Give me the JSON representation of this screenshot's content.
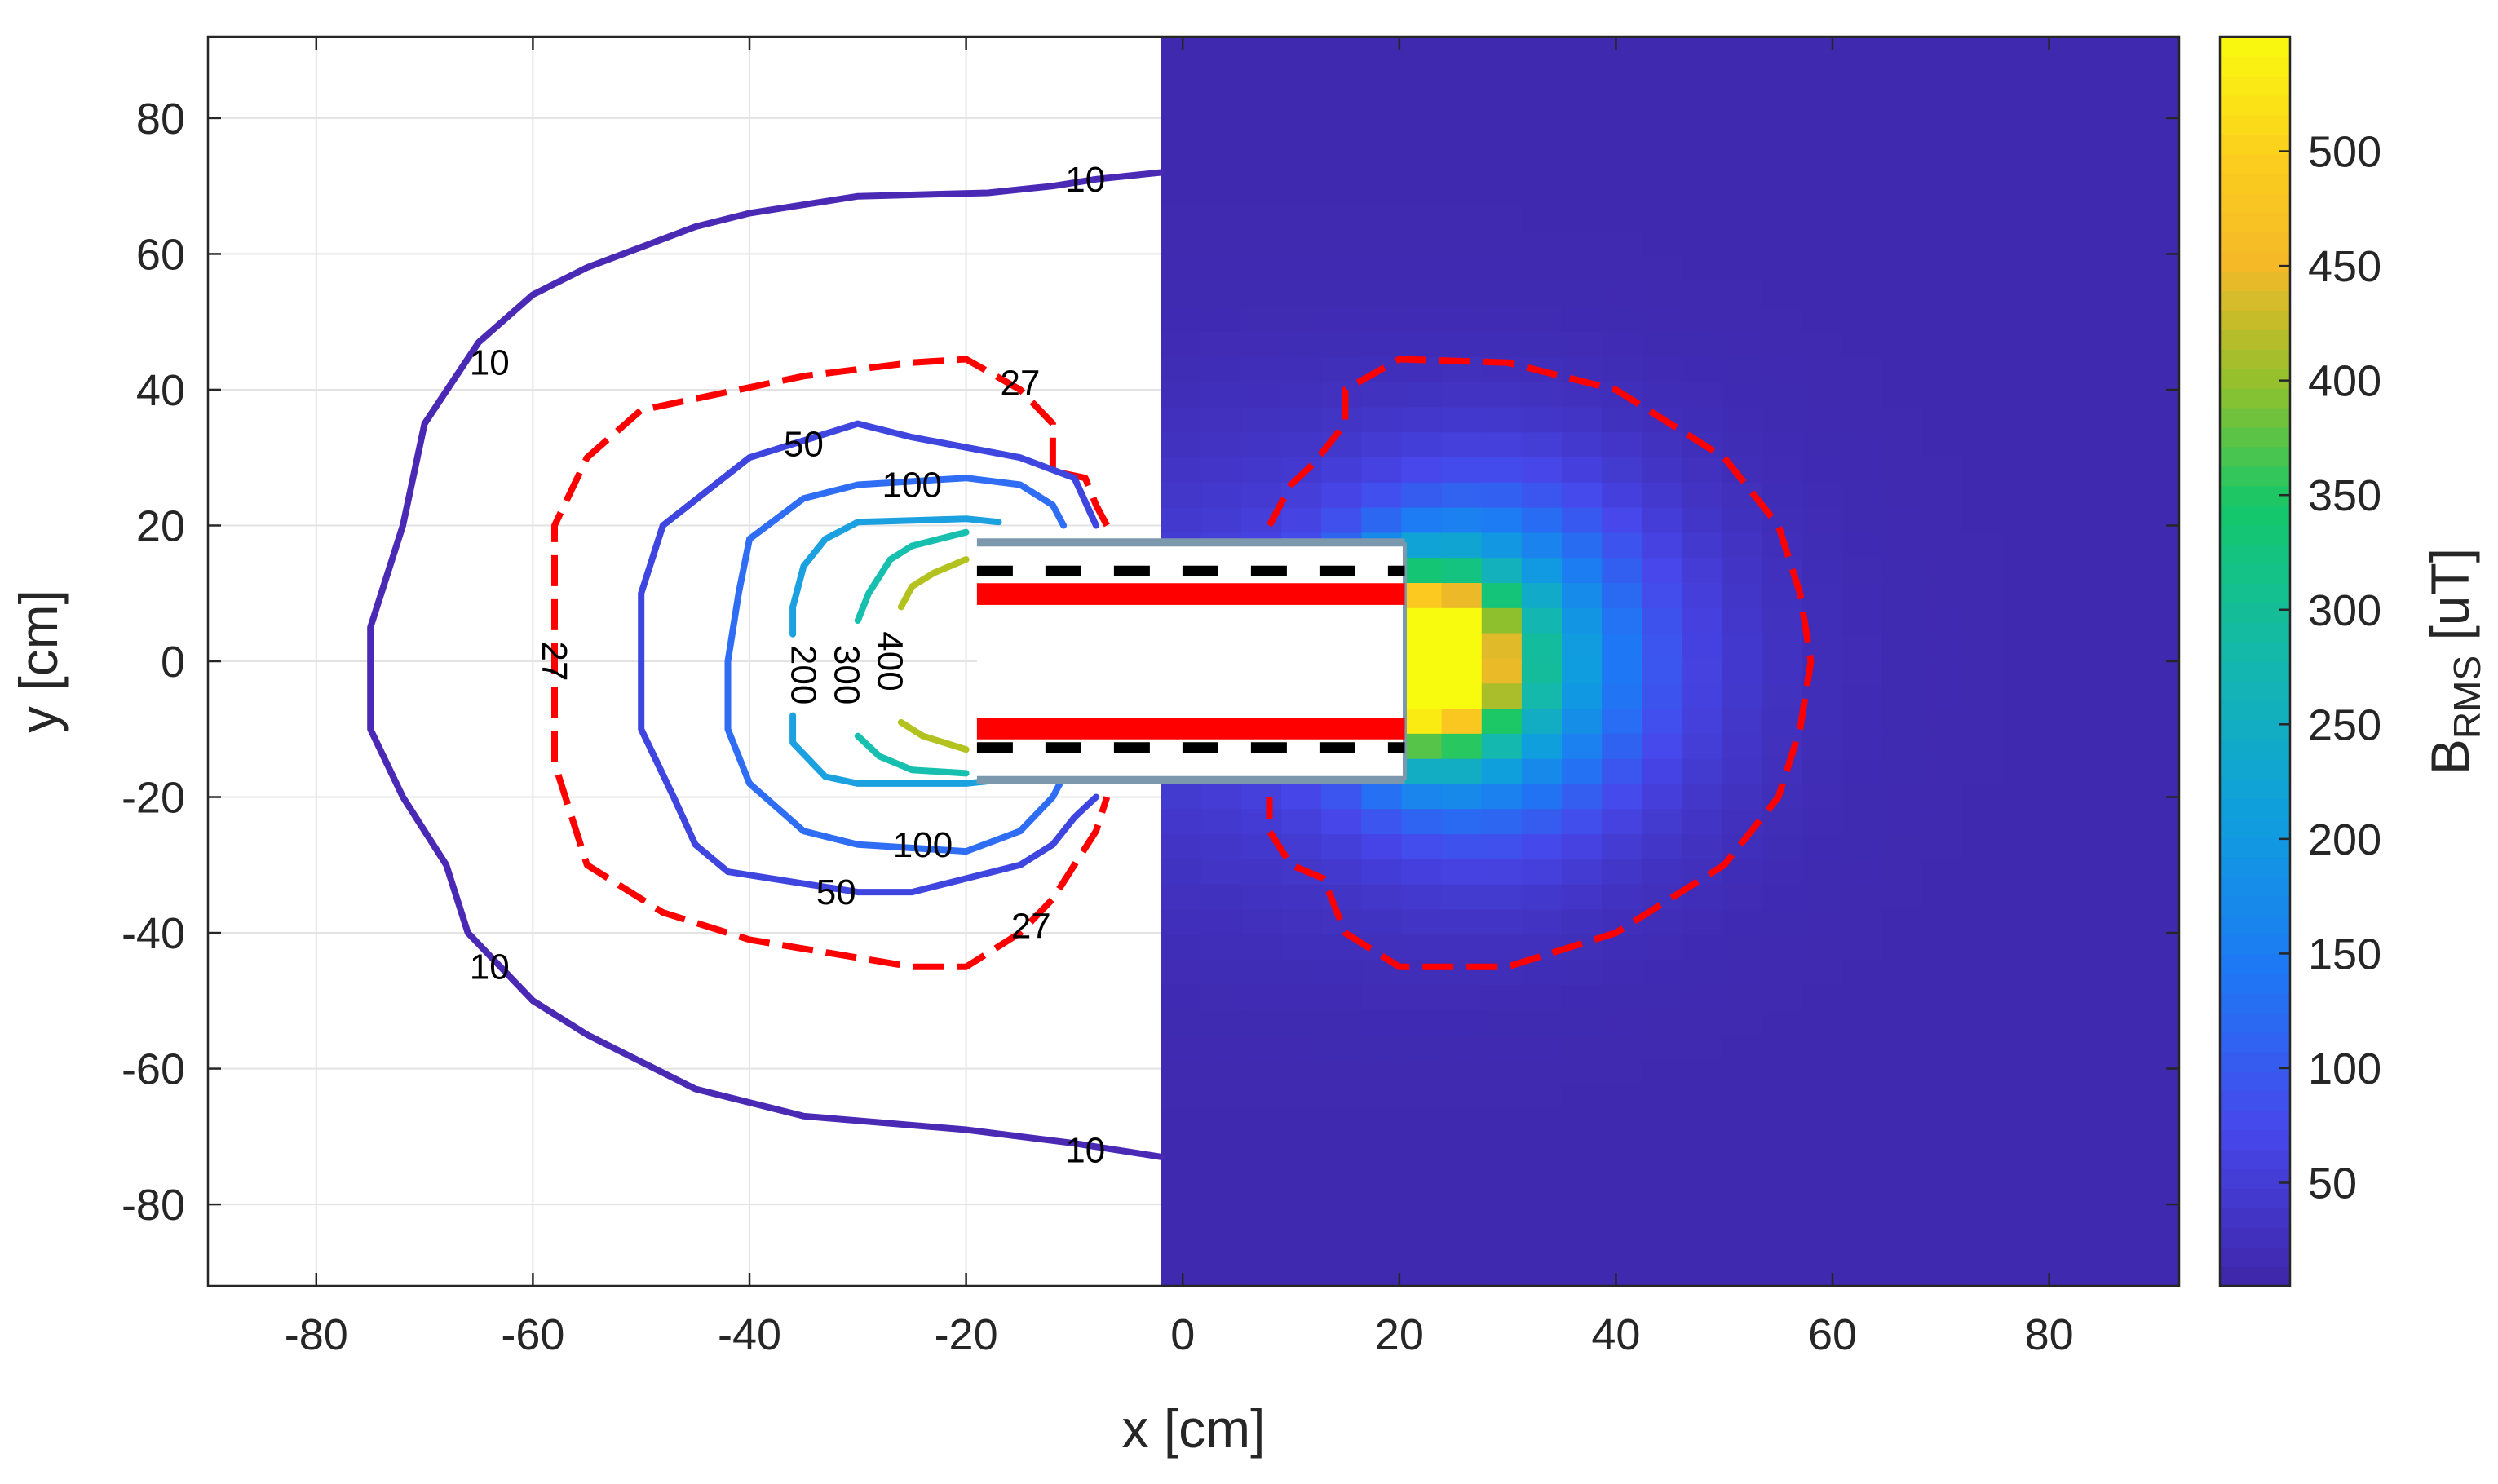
{
  "chart_data": {
    "type": "heatmap",
    "xlabel": "x [cm]",
    "ylabel": "y [cm]",
    "colorbar_label": "B_RMS [uT]",
    "colorbar_label_main": "B",
    "colorbar_label_sub": "RMS",
    "colorbar_label_unit": " [uT]",
    "xlim": [
      -90,
      92
    ],
    "ylim": [
      -92,
      92
    ],
    "clim": [
      5,
      550
    ],
    "grid": true,
    "x_ticks": [
      -80,
      -60,
      -40,
      -20,
      0,
      20,
      40,
      60,
      80
    ],
    "y_ticks": [
      80,
      60,
      40,
      20,
      0,
      -20,
      -40,
      -60,
      -80
    ],
    "colorbar_ticks": [
      50,
      100,
      150,
      200,
      250,
      300,
      350,
      400,
      450,
      500
    ],
    "contour_levels": [
      {
        "level": "10",
        "color": "#4a2ab5",
        "dashed": false,
        "labels": [
          {
            "text": "10",
            "x": -9,
            "y": 71
          },
          {
            "text": "10",
            "x": -64,
            "y": 44
          },
          {
            "text": "10",
            "x": -64,
            "y": -45
          },
          {
            "text": "10",
            "x": -9,
            "y": -72
          }
        ],
        "points": [
          [
            -2,
            72
          ],
          [
            -8,
            71
          ],
          [
            -12,
            70
          ],
          [
            -18,
            69
          ],
          [
            -30,
            68.5
          ],
          [
            -40,
            66
          ],
          [
            -45,
            64
          ],
          [
            -55,
            58
          ],
          [
            -60,
            54
          ],
          [
            -65,
            47
          ],
          [
            -70,
            35
          ],
          [
            -72,
            20
          ],
          [
            -75,
            5
          ],
          [
            -75,
            -10
          ],
          [
            -72,
            -20
          ],
          [
            -68,
            -30
          ],
          [
            -66,
            -40
          ],
          [
            -60,
            -50
          ],
          [
            -55,
            -55
          ],
          [
            -45,
            -63
          ],
          [
            -35,
            -67
          ],
          [
            -20,
            -69
          ],
          [
            -10,
            -71
          ],
          [
            -2,
            -73
          ]
        ]
      },
      {
        "level": "27",
        "color": "#ff0000",
        "dashed": true,
        "labels": [
          {
            "text": "27",
            "x": -15,
            "y": 41
          },
          {
            "text": "27",
            "x": -58,
            "y": 0
          },
          {
            "text": "27",
            "x": -14,
            "y": -39
          }
        ],
        "points": [
          [
            -7,
            20
          ],
          [
            -8,
            23
          ],
          [
            -9,
            27
          ],
          [
            -12,
            28
          ],
          [
            -12,
            35
          ],
          [
            -15,
            40
          ],
          [
            -20,
            44.5
          ],
          [
            -25,
            44
          ],
          [
            -35,
            42
          ],
          [
            -50,
            37
          ],
          [
            -55,
            30
          ],
          [
            -58,
            20
          ],
          [
            -58,
            5
          ],
          [
            -58,
            -5
          ],
          [
            -58,
            -15
          ],
          [
            -55,
            -30
          ],
          [
            -48,
            -37
          ],
          [
            -40,
            -41
          ],
          [
            -25,
            -45
          ],
          [
            -20,
            -45
          ],
          [
            -15,
            -40
          ],
          [
            -12,
            -35
          ],
          [
            -10,
            -30
          ],
          [
            -8,
            -25
          ],
          [
            -7,
            -20
          ],
          [
            null,
            null
          ],
          [
            8,
            20
          ],
          [
            10,
            26
          ],
          [
            12,
            29
          ],
          [
            13,
            31
          ],
          [
            15,
            35
          ],
          [
            15,
            40
          ],
          [
            20,
            44.5
          ],
          [
            30,
            44
          ],
          [
            40,
            40
          ],
          [
            50,
            30
          ],
          [
            55,
            20
          ],
          [
            57,
            10
          ],
          [
            58,
            0
          ],
          [
            57,
            -10
          ],
          [
            55,
            -20
          ],
          [
            50,
            -30
          ],
          [
            40,
            -40
          ],
          [
            30,
            -45
          ],
          [
            20,
            -45
          ],
          [
            15,
            -40
          ],
          [
            13,
            -32
          ],
          [
            10,
            -30
          ],
          [
            8,
            -25
          ],
          [
            8,
            -20
          ]
        ]
      },
      {
        "level": "50",
        "color": "#3f46e0",
        "dashed": false,
        "labels": [
          {
            "text": "50",
            "x": -35,
            "y": 32
          },
          {
            "text": "50",
            "x": -32,
            "y": -34
          }
        ],
        "points": [
          [
            -8,
            20
          ],
          [
            -10,
            27
          ],
          [
            -15,
            30
          ],
          [
            -25,
            33
          ],
          [
            -30,
            35
          ],
          [
            -40,
            30
          ],
          [
            -48,
            20
          ],
          [
            -50,
            10
          ],
          [
            -50,
            0
          ],
          [
            -50,
            -10
          ],
          [
            -47,
            -20
          ],
          [
            -45,
            -27
          ],
          [
            -42,
            -31
          ],
          [
            -38,
            -32
          ],
          [
            -30,
            -34
          ],
          [
            -25,
            -34
          ],
          [
            -15,
            -30
          ],
          [
            -12,
            -27
          ],
          [
            -10,
            -23
          ],
          [
            -8,
            -20
          ]
        ]
      },
      {
        "level": "100",
        "color": "#2f6df5",
        "dashed": false,
        "labels": [
          {
            "text": "100",
            "x": -25,
            "y": 26
          },
          {
            "text": "100",
            "x": -24,
            "y": -27
          }
        ],
        "points": [
          [
            -11,
            20
          ],
          [
            -12,
            23
          ],
          [
            -15,
            26
          ],
          [
            -20,
            27
          ],
          [
            -30,
            26
          ],
          [
            -35,
            24
          ],
          [
            -40,
            18
          ],
          [
            -41,
            10
          ],
          [
            -42,
            0
          ],
          [
            -42,
            -10
          ],
          [
            -40,
            -18
          ],
          [
            -35,
            -25
          ],
          [
            -30,
            -27
          ],
          [
            -20,
            -28
          ],
          [
            -15,
            -25
          ],
          [
            -12,
            -20
          ],
          [
            -11,
            -17
          ]
        ]
      },
      {
        "level": "200",
        "color": "#1ba0e0",
        "dashed": false,
        "labels": [
          {
            "text": "200",
            "x": -35,
            "y": -2
          }
        ],
        "points": [
          [
            -17,
            20.5
          ],
          [
            -20,
            21
          ],
          [
            -30,
            20.5
          ],
          [
            -33,
            18
          ],
          [
            -35,
            14
          ],
          [
            -36,
            8
          ],
          [
            -36,
            4
          ],
          [
            null,
            null
          ],
          [
            -36,
            -8
          ],
          [
            -36,
            -12
          ],
          [
            -33,
            -17
          ],
          [
            -30,
            -18
          ],
          [
            -20,
            -18
          ],
          [
            -17,
            -17.5
          ]
        ]
      },
      {
        "level": "300",
        "color": "#16bfae",
        "dashed": false,
        "labels": [
          {
            "text": "300",
            "x": -31,
            "y": -2
          }
        ],
        "points": [
          [
            -20,
            19
          ],
          [
            -25,
            17
          ],
          [
            -27,
            15
          ],
          [
            -29,
            10
          ],
          [
            -30,
            6
          ],
          [
            null,
            null
          ],
          [
            -30,
            -11
          ],
          [
            -28,
            -14
          ],
          [
            -25,
            -16
          ],
          [
            -20,
            -16.5
          ]
        ]
      },
      {
        "level": "400",
        "color": "#b3c21e",
        "dashed": false,
        "labels": [
          {
            "text": "400",
            "x": -27,
            "y": 0
          }
        ],
        "points": [
          [
            -20,
            15
          ],
          [
            -23,
            13
          ],
          [
            -25,
            11
          ],
          [
            -26,
            8
          ],
          [
            null,
            null
          ],
          [
            -26,
            -9
          ],
          [
            -24,
            -11
          ],
          [
            -20,
            -13
          ]
        ]
      }
    ]
  }
}
